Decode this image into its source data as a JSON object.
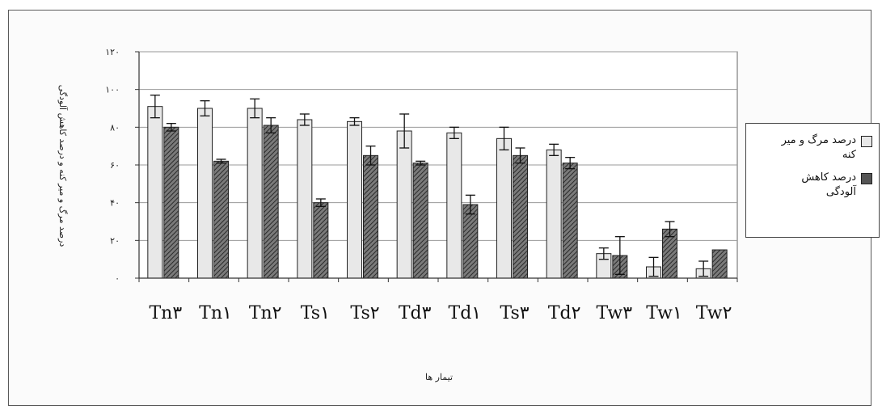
{
  "chart_data": {
    "type": "bar",
    "categories": [
      "Tn۳",
      "Tn۱",
      "Tn۲",
      "Ts۱",
      "Ts۲",
      "Td۳",
      "Td۱",
      "Ts۳",
      "Td۲",
      "Tw۳",
      "Tw۱",
      "Tw۲"
    ],
    "series": [
      {
        "name": "درصد مرگ و میر",
        "values": [
          91,
          90,
          90,
          84,
          83,
          78,
          77,
          74,
          68,
          13,
          6,
          5
        ],
        "errors": [
          6,
          4,
          5,
          3,
          2,
          9,
          3,
          6,
          3,
          3,
          5,
          4
        ],
        "color": "#e8e8e8"
      },
      {
        "name": "درصد کاهش آلودگی",
        "values": [
          80,
          62,
          81,
          40,
          65,
          61,
          39,
          65,
          61,
          12,
          26,
          15
        ],
        "errors": [
          2,
          1,
          4,
          2,
          5,
          1,
          5,
          4,
          3,
          10,
          4,
          0
        ],
        "color": "#555555"
      }
    ],
    "ylim": [
      0,
      120
    ],
    "yticks": [
      0,
      20,
      40,
      60,
      80,
      100,
      120
    ],
    "ytick_labels": [
      "۰",
      "۲۰",
      "۴۰",
      "۶۰",
      "۸۰",
      "۱۰۰",
      "۱۲۰"
    ],
    "xlabel": "تیمار ها",
    "ylabel": "درصد مرگ و میر کنه و درصد کاهش آلودگی",
    "grid": true,
    "legend_position": "right"
  },
  "legend": {
    "entries": [
      "درصد مرگ و میر\nکنه",
      "درصد کاهش\nآلودگی"
    ]
  }
}
